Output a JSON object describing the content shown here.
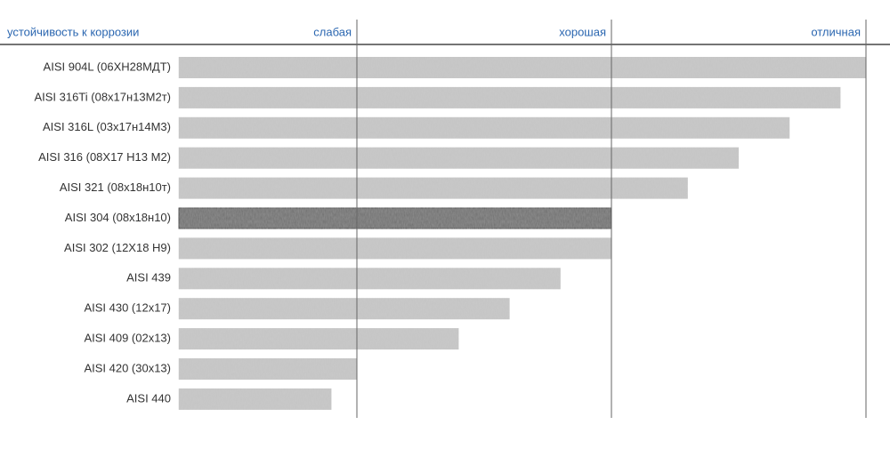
{
  "chart_data": {
    "type": "hbar",
    "xlabel": "устойчивость к коррозии",
    "categories": [
      "AISI 904L (06ХН28МДТ)",
      "AISI 316Ti (08х17н13М2т)",
      "AISI 316L (03х17н14М3)",
      "AISI 316 (08Х17 Н13 М2)",
      "AISI 321 (08х18н10т)",
      "AISI 304 (08х18н10)",
      "AISI 302 (12Х18 Н9)",
      "AISI 439",
      "AISI 430 (12х17)",
      "AISI 409 (02х13)",
      "AISI 420 (30х13)",
      "AISI 440"
    ],
    "values": [
      30,
      29,
      27,
      25,
      23,
      20,
      20,
      18,
      16,
      14,
      10,
      9
    ],
    "color": "#c9c9c9",
    "highlight_index": 5,
    "highlight_color": "#6e6e6e",
    "xlim": [
      3,
      30
    ],
    "xticks": [
      {
        "value": 10,
        "label": "слабая"
      },
      {
        "value": 20,
        "label": "хорошая"
      },
      {
        "value": 30,
        "label": "отличная"
      }
    ],
    "grid": true
  }
}
